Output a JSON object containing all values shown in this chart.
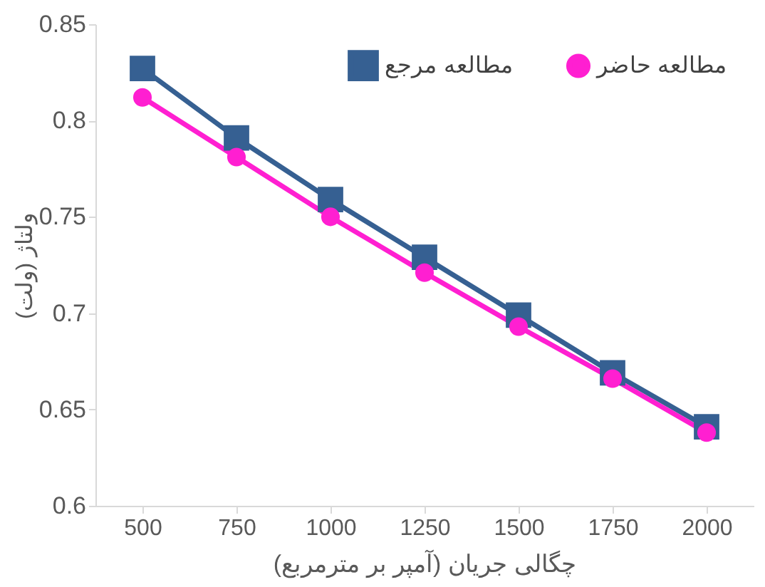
{
  "chart_data": {
    "type": "line",
    "xlabel": "چگالی جریان (آمپر بر مترمربع)",
    "ylabel": "ولتاژ (ولت)",
    "categories": [
      "500",
      "750",
      "1000",
      "1250",
      "1500",
      "1750",
      "2000"
    ],
    "series": [
      {
        "name": "مطالعه مرجع",
        "color": "#366092",
        "marker": "square",
        "values": [
          0.827,
          0.791,
          0.759,
          0.729,
          0.699,
          0.669,
          0.641
        ]
      },
      {
        "name": "مطالعه حاضر",
        "color": "#ff1fd1",
        "marker": "circle",
        "values": [
          0.812,
          0.781,
          0.75,
          0.721,
          0.693,
          0.666,
          0.638
        ]
      }
    ],
    "ylim": [
      0.6,
      0.85
    ],
    "yticks": [
      0.6,
      0.65,
      0.7,
      0.75,
      0.8,
      0.85
    ],
    "grid": false,
    "legend": "top right",
    "line_style": "solid"
  }
}
